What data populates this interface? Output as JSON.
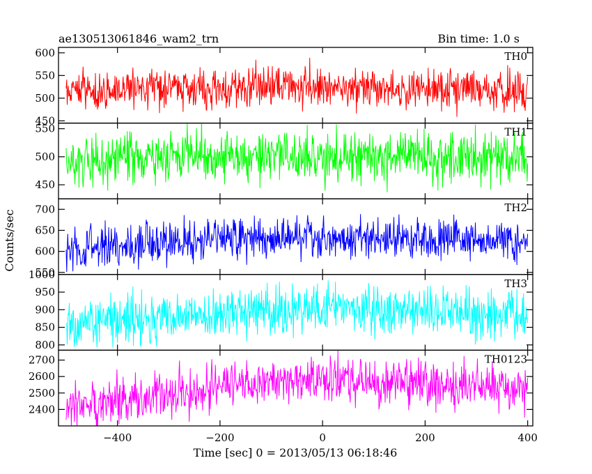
{
  "chart_data": {
    "type": "line",
    "title_left": "ae130513061846_wam2_trn",
    "title_right": "Bin time: 1.0 s",
    "xlabel": "Time [sec] 0 = 2013/05/13 06:18:46",
    "ylabel": "Counts/sec",
    "xlim": [
      -515,
      410
    ],
    "xticks": [
      -400,
      -200,
      0,
      200,
      400
    ],
    "x_range": [
      -500,
      400
    ],
    "bin_time": 1.0,
    "grid": false,
    "panels": [
      {
        "name": "TH0",
        "color": "#ff0000",
        "ylim": [
          445,
          612
        ],
        "yticks": [
          450,
          500,
          550,
          600
        ],
        "mean": 520,
        "spread": 22,
        "trend": [
          {
            "x": -500,
            "y": 515
          },
          {
            "x": -300,
            "y": 520
          },
          {
            "x": -100,
            "y": 525
          },
          {
            "x": 0,
            "y": 525
          },
          {
            "x": 100,
            "y": 522
          },
          {
            "x": 300,
            "y": 520
          },
          {
            "x": 400,
            "y": 518
          }
        ]
      },
      {
        "name": "TH1",
        "color": "#00ff00",
        "ylim": [
          425,
          560
        ],
        "yticks": [
          450,
          500,
          550
        ],
        "mean": 500,
        "spread": 22,
        "trend": [
          {
            "x": -500,
            "y": 495
          },
          {
            "x": -300,
            "y": 498
          },
          {
            "x": -100,
            "y": 502
          },
          {
            "x": 0,
            "y": 500
          },
          {
            "x": 100,
            "y": 502
          },
          {
            "x": 300,
            "y": 500
          },
          {
            "x": 400,
            "y": 498
          }
        ]
      },
      {
        "name": "TH2",
        "color": "#0000ff",
        "ylim": [
          545,
          725
        ],
        "yticks": [
          550,
          600,
          650,
          700
        ],
        "mean": 625,
        "spread": 25,
        "trend": [
          {
            "x": -500,
            "y": 605
          },
          {
            "x": -300,
            "y": 620
          },
          {
            "x": -200,
            "y": 630
          },
          {
            "x": 0,
            "y": 635
          },
          {
            "x": 100,
            "y": 632
          },
          {
            "x": 300,
            "y": 630
          },
          {
            "x": 400,
            "y": 625
          }
        ]
      },
      {
        "name": "TH3",
        "color": "#00ffff",
        "ylim": [
          785,
          1000
        ],
        "yticks": [
          800,
          850,
          900,
          950,
          1000
        ],
        "mean": 885,
        "spread": 33,
        "trend": [
          {
            "x": -500,
            "y": 860
          },
          {
            "x": -300,
            "y": 875
          },
          {
            "x": -200,
            "y": 890
          },
          {
            "x": 0,
            "y": 900
          },
          {
            "x": 100,
            "y": 898
          },
          {
            "x": 300,
            "y": 893
          },
          {
            "x": 400,
            "y": 888
          }
        ]
      },
      {
        "name": "TH0123",
        "color": "#ff00ff",
        "ylim": [
          2300,
          2760
        ],
        "yticks": [
          2400,
          2500,
          2600,
          2700
        ],
        "mean": 2530,
        "spread": 70,
        "trend": [
          {
            "x": -500,
            "y": 2430
          },
          {
            "x": -300,
            "y": 2490
          },
          {
            "x": -200,
            "y": 2540
          },
          {
            "x": -100,
            "y": 2575
          },
          {
            "x": 0,
            "y": 2590
          },
          {
            "x": 100,
            "y": 2565
          },
          {
            "x": 300,
            "y": 2545
          },
          {
            "x": 400,
            "y": 2520
          }
        ]
      }
    ]
  }
}
